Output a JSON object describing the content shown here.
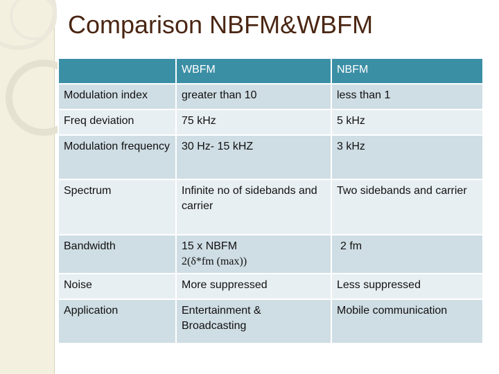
{
  "slide": {
    "title": "Comparison NBFM&WBFM"
  },
  "table": {
    "headers": [
      "",
      "WBFM",
      "NBFM"
    ],
    "rows": [
      {
        "parameter": "Modulation index",
        "wbfm": "greater than 10",
        "nbfm": "less than 1"
      },
      {
        "parameter": "Freq deviation",
        "wbfm": "75 kHz",
        "nbfm": "5 kHz"
      },
      {
        "parameter": "Modulation frequency",
        "wbfm": "30 Hz- 15 kHZ",
        "nbfm": "3 kHz"
      },
      {
        "parameter": "Spectrum",
        "wbfm": "Infinite no of sidebands and carrier",
        "nbfm": "Two sidebands and carrier"
      },
      {
        "parameter": "Bandwidth",
        "wbfm_line1": "15 x NBFM",
        "wbfm_line2": "2(δ*fm (max))",
        "nbfm": "2 fm"
      },
      {
        "parameter": "Noise",
        "wbfm": "More suppressed",
        "nbfm": "Less suppressed"
      },
      {
        "parameter": "Application",
        "wbfm": "Entertainment & Broadcasting",
        "nbfm": "Mobile communication"
      }
    ]
  },
  "colors": {
    "header_bg": "#3b8fa5",
    "row_dark": "#cfdde4",
    "row_light": "#e8eff3",
    "title": "#4a2613",
    "strip": "#f3f0df"
  }
}
